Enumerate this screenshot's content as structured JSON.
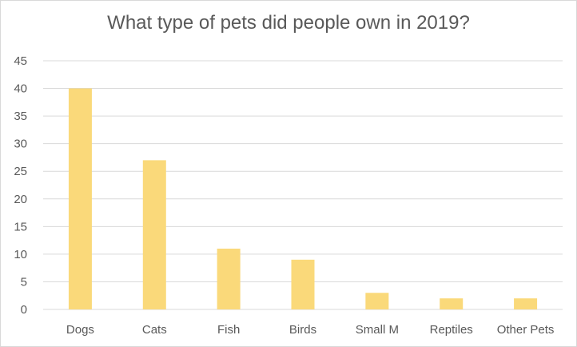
{
  "chart_data": {
    "type": "bar",
    "title": "What type of pets did people own in 2019?",
    "categories": [
      "Dogs",
      "Cats",
      "Fish",
      "Birds",
      "Small M",
      "Reptiles",
      "Other Pets"
    ],
    "values": [
      40,
      27,
      11,
      9,
      3,
      2,
      2
    ],
    "xlabel": "",
    "ylabel": "",
    "ylim": [
      0,
      45
    ],
    "yticks": [
      "0",
      "5",
      "10",
      "15",
      "20",
      "25",
      "30",
      "35",
      "40",
      "45"
    ],
    "grid": true,
    "bar_color": "#FAD97A",
    "grid_color": "#D9D9D9",
    "text_color": "#595959"
  }
}
